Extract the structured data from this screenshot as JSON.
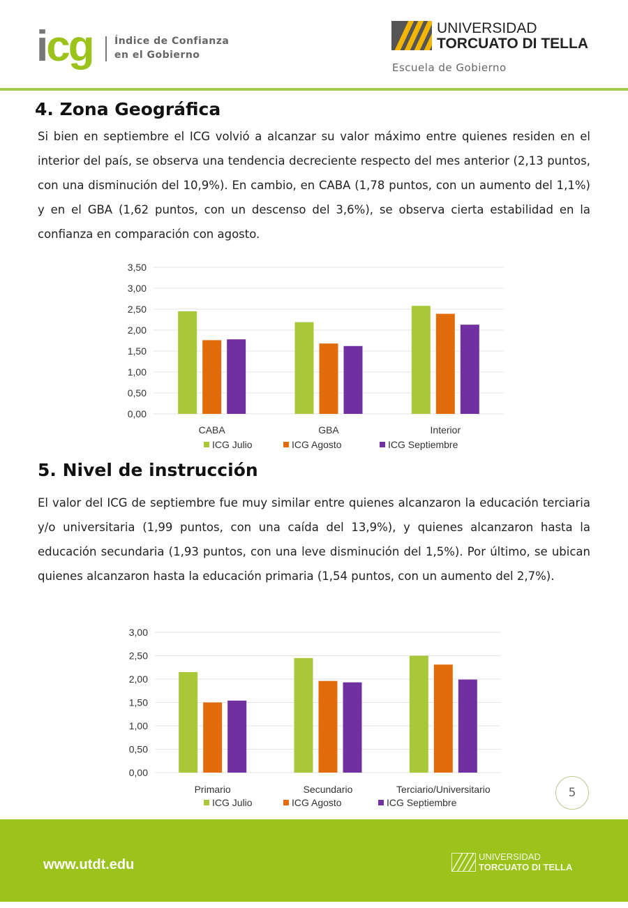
{
  "header": {
    "icg_logo_i": "i",
    "icg_logo_cg": "cg",
    "icg_subtitle_line1": "Índice de Confianza",
    "icg_subtitle_line2": "en el Gobierno",
    "university_line1": "UNIVERSIDAD",
    "university_line2": "TORCUATO DI TELLA",
    "school": "Escuela de Gobierno"
  },
  "section4": {
    "title": "4. Zona Geográfica",
    "text": "Si bien en septiembre el ICG volvió a alcanzar su valor máximo entre quienes residen en el interior del país, se observa una tendencia decreciente respecto del mes anterior (2,13 puntos, con una disminución del 10,9%). En cambio, en CABA (1,78 puntos, con un aumento del 1,1%) y en el GBA (1,62 puntos, con un descenso del 3,6%), se observa cierta estabilidad en la confianza en comparación con agosto."
  },
  "section5": {
    "title": "5. Nivel de instrucción",
    "text": "El valor del ICG de septiembre fue muy similar entre quienes alcanzaron la educación terciaria y/o universitaria (1,99 puntos, con una caída del 13,9%), y quienes alcanzaron hasta la educación secundaria (1,93 puntos, con una leve disminución del 1,5%). Por último, se ubican quienes alcanzaron hasta la educación primaria (1,54 puntos, con un aumento del 2,7%)."
  },
  "chart_data": [
    {
      "type": "bar",
      "title": "",
      "categories": [
        "CABA",
        "GBA",
        "Interior"
      ],
      "series": [
        {
          "name": "ICG Julio",
          "color": "#a8c83a",
          "values": [
            2.45,
            2.19,
            2.58
          ]
        },
        {
          "name": "ICG Agosto",
          "color": "#e36c0a",
          "values": [
            1.76,
            1.68,
            2.39
          ]
        },
        {
          "name": "ICG Septiembre",
          "color": "#7030a0",
          "values": [
            1.78,
            1.62,
            2.13
          ]
        }
      ],
      "yticks": [
        "0,00",
        "0,50",
        "1,00",
        "1,50",
        "2,00",
        "2,50",
        "3,00",
        "3,50"
      ],
      "ylim": [
        0,
        3.5
      ],
      "grid": true,
      "legend": "bottom"
    },
    {
      "type": "bar",
      "title": "",
      "categories": [
        "Primario",
        "Secundario",
        "Terciario/Universitario"
      ],
      "series": [
        {
          "name": "ICG Julio",
          "color": "#a8c83a",
          "values": [
            2.15,
            2.45,
            2.5
          ]
        },
        {
          "name": "ICG Agosto",
          "color": "#e36c0a",
          "values": [
            1.5,
            1.96,
            2.31
          ]
        },
        {
          "name": "ICG Septiembre",
          "color": "#7030a0",
          "values": [
            1.54,
            1.93,
            1.99
          ]
        }
      ],
      "yticks": [
        "0,00",
        "0,50",
        "1,00",
        "1,50",
        "2,00",
        "2,50",
        "3,00"
      ],
      "ylim": [
        0,
        3.0
      ],
      "grid": true,
      "legend": "bottom"
    }
  ],
  "page_number": "5",
  "footer": {
    "url": "www.utdt.edu",
    "university_line1": "UNIVERSIDAD",
    "university_line2": "TORCUATO DI TELLA"
  }
}
